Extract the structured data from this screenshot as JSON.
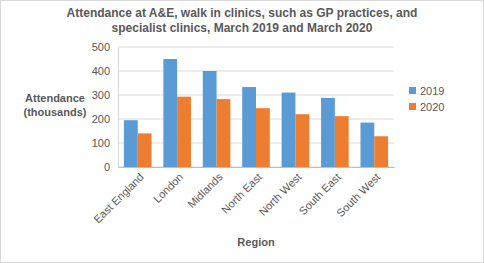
{
  "chart_data": {
    "type": "bar",
    "title": [
      "Attendance at A&E, walk in clinics, such as GP practices, and",
      "specialist clinics, March 2019 and March 2020"
    ],
    "x_label": "Region",
    "y_label": [
      "Attendance",
      "(thousands)"
    ],
    "categories": [
      "East England",
      "London",
      "Midlands",
      "North East",
      "North West",
      "South East",
      "South West"
    ],
    "series": [
      {
        "name": "2019",
        "color": "#5b9bd5",
        "values": [
          195,
          450,
          400,
          333,
          310,
          288,
          185
        ]
      },
      {
        "name": "2020",
        "color": "#ed7d31",
        "values": [
          140,
          293,
          283,
          245,
          220,
          212,
          128
        ]
      }
    ],
    "ylim": [
      0,
      500
    ],
    "yticks": [
      0,
      100,
      200,
      300,
      400,
      500
    ],
    "grid": true,
    "legend": "right"
  }
}
